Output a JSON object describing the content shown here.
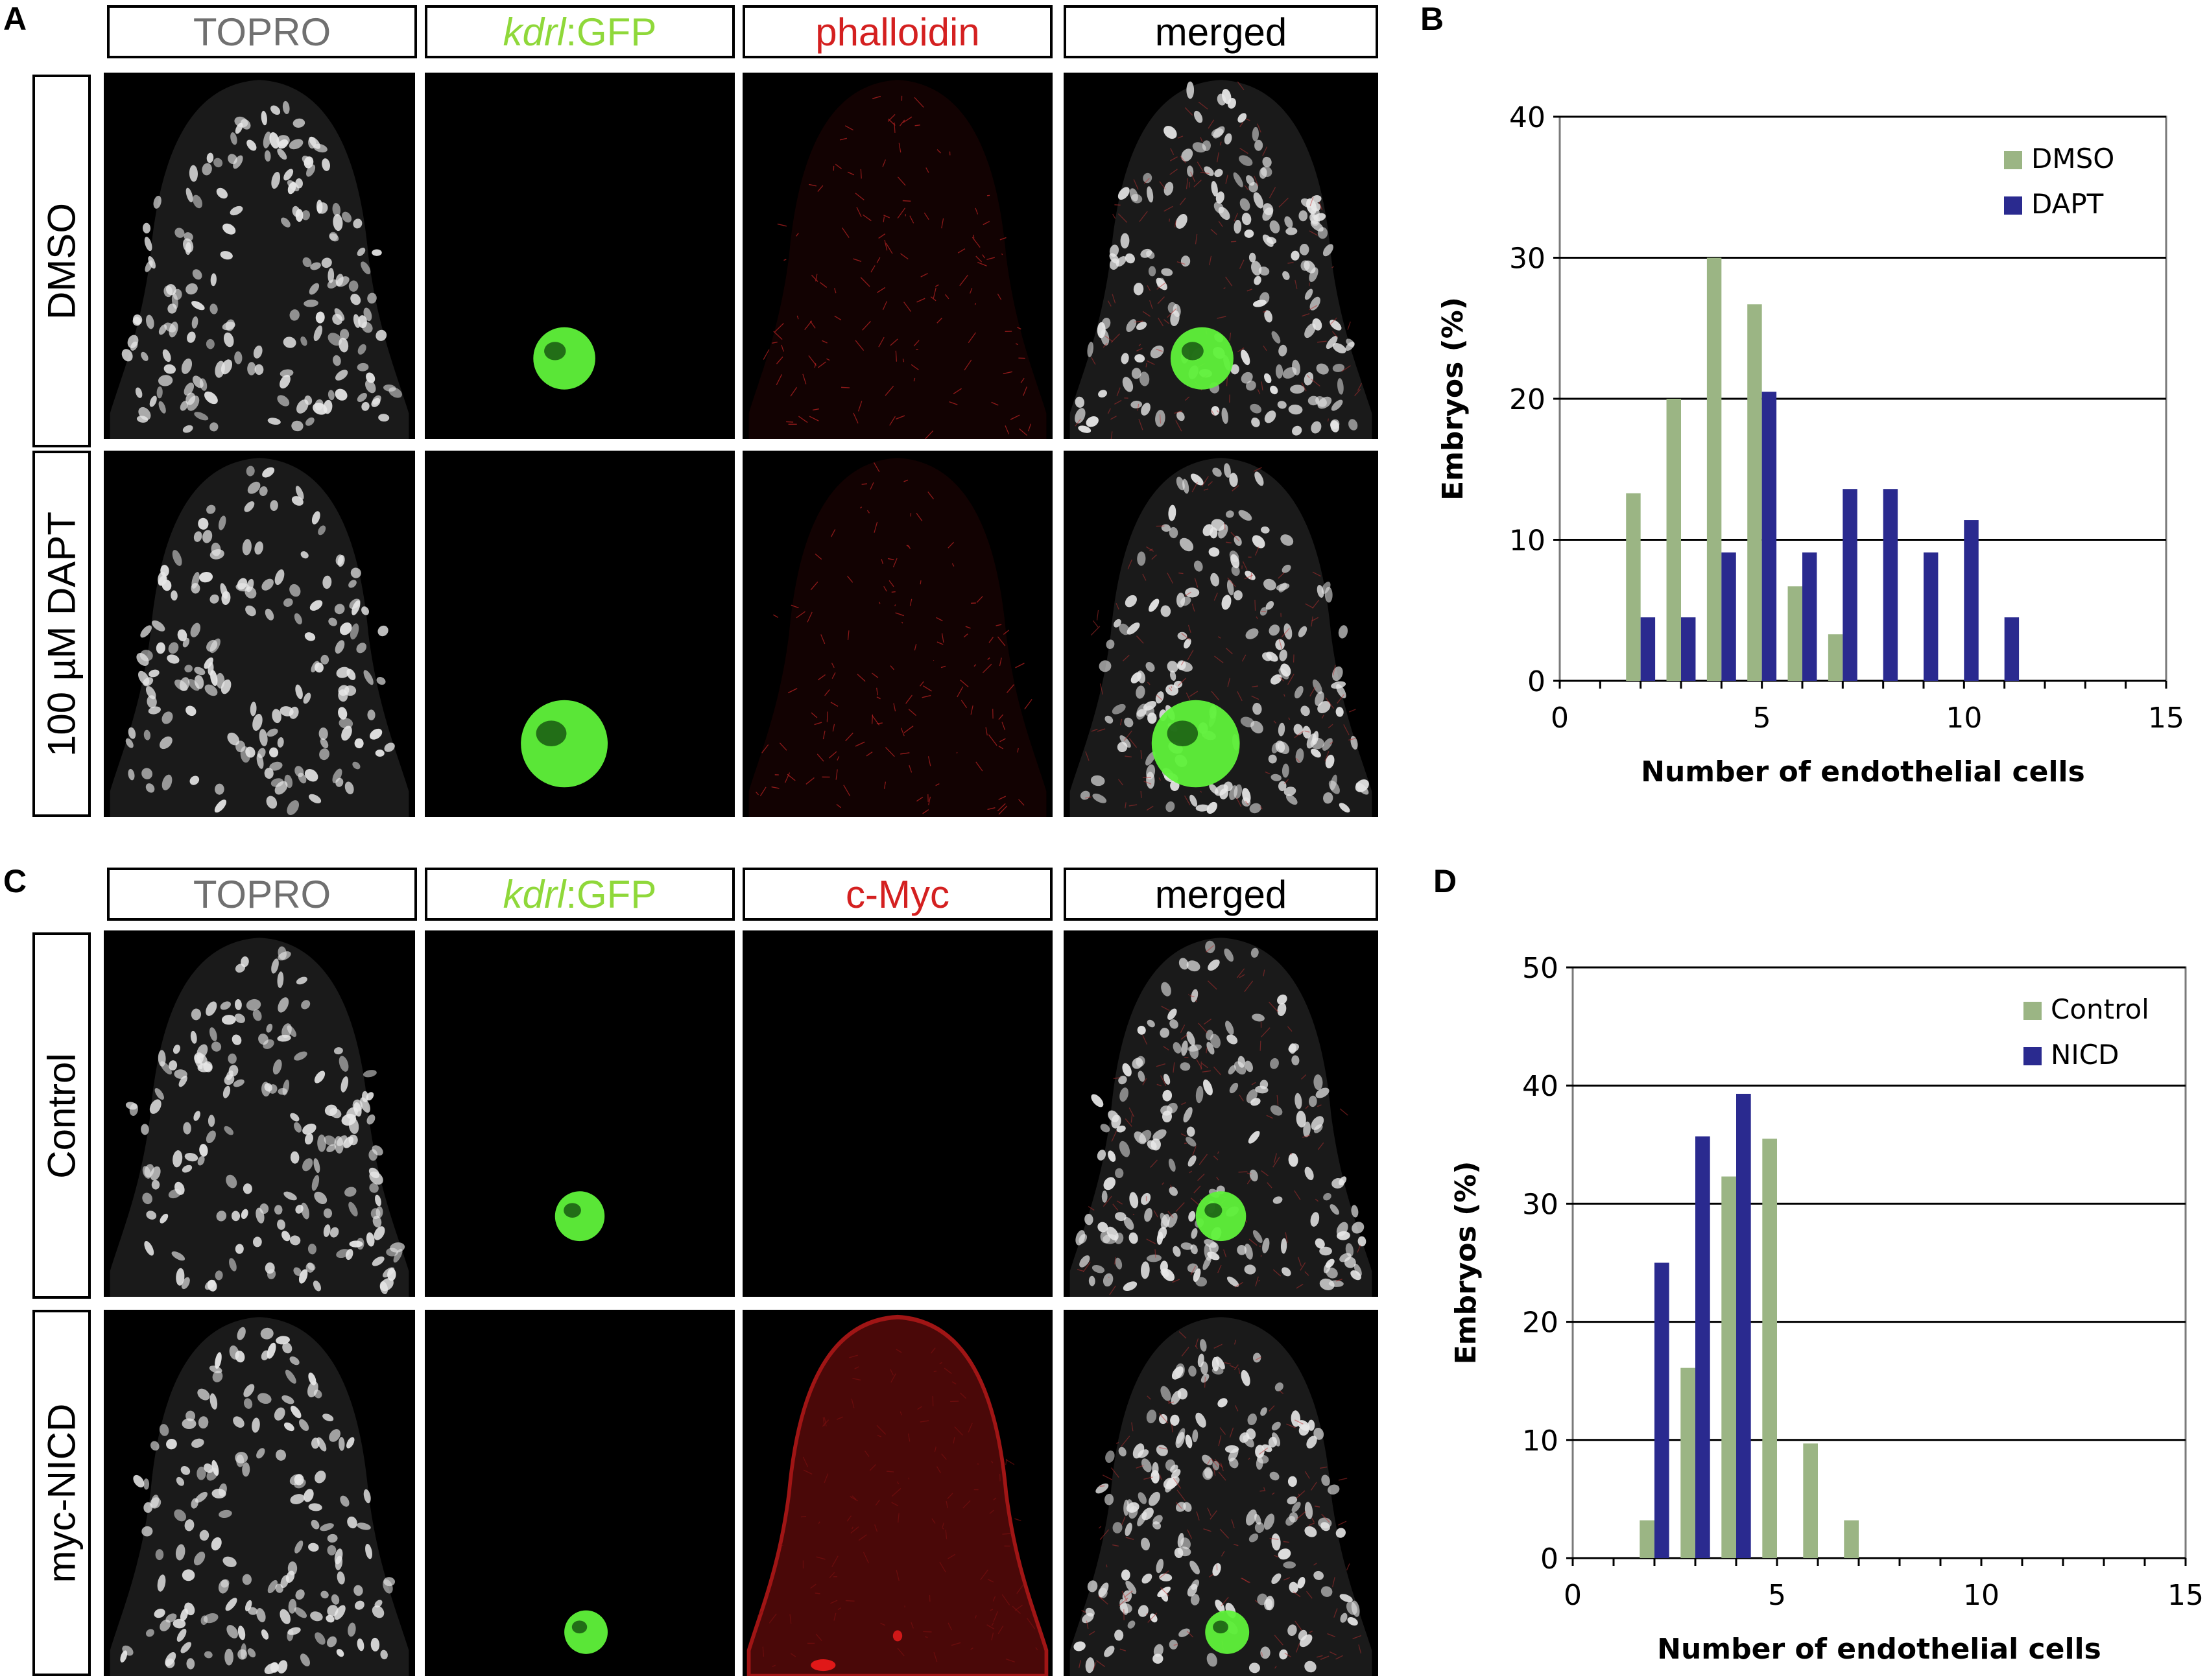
{
  "panel_letters": {
    "a": "A",
    "b": "B",
    "c": "C",
    "d": "D"
  },
  "panel_a": {
    "headers": {
      "topro": "TOPRO",
      "kdrl_italic": "kdrl",
      "gfp_suffix": ":GFP",
      "stain": "phalloidin",
      "merged": "merged"
    },
    "rows": [
      "DMSO",
      "100 µM DAPT"
    ]
  },
  "panel_c": {
    "headers": {
      "topro": "TOPRO",
      "kdrl_italic": "kdrl",
      "gfp_suffix": ":GFP",
      "stain": "c-Myc",
      "merged": "merged"
    },
    "rows": [
      "Control",
      "myc-NICD"
    ]
  },
  "colors": {
    "topro_header_text": "#707070",
    "gfp_header_text": "#8fd83a",
    "stain_header_text": "#d42020",
    "merged_header_text": "#000000",
    "dmso_bar": "#9bb584",
    "dapt_bar": "#2a2a8f"
  },
  "chart_data": [
    {
      "type": "bar",
      "panel": "B",
      "xlabel": "Number of endothelial cells",
      "ylabel": "Embryos (%)",
      "xlim": [
        0,
        15
      ],
      "ylim": [
        0,
        40
      ],
      "xticks": [
        0,
        5,
        10,
        15
      ],
      "yticks": [
        0,
        10,
        20,
        30,
        40
      ],
      "grid": "horizontal",
      "legend_position": "top-right",
      "series": [
        {
          "name": "DMSO",
          "x": [
            2,
            3,
            4,
            5,
            6,
            7
          ],
          "values": [
            13.3,
            20,
            30,
            26.7,
            6.7,
            3.3
          ]
        },
        {
          "name": "DAPT",
          "x": [
            2,
            3,
            4,
            5,
            6,
            7,
            8,
            9,
            10,
            11
          ],
          "values": [
            4.5,
            4.5,
            9.1,
            20.5,
            9.1,
            13.6,
            13.6,
            9.1,
            11.4,
            4.5
          ]
        }
      ]
    },
    {
      "type": "bar",
      "panel": "D",
      "xlabel": "Number of endothelial cells",
      "ylabel": "Embryos (%)",
      "xlim": [
        0,
        15
      ],
      "ylim": [
        0,
        50
      ],
      "xticks": [
        0,
        5,
        10,
        15
      ],
      "yticks": [
        0,
        10,
        20,
        30,
        40,
        50
      ],
      "grid": "horizontal",
      "legend_position": "top-right",
      "series": [
        {
          "name": "Control",
          "x": [
            2,
            3,
            4,
            5,
            6,
            7
          ],
          "values": [
            3.2,
            16.1,
            32.3,
            35.5,
            9.7,
            3.2
          ]
        },
        {
          "name": "NICD",
          "x": [
            2,
            3,
            4
          ],
          "values": [
            25,
            35.7,
            39.3
          ]
        }
      ]
    }
  ]
}
